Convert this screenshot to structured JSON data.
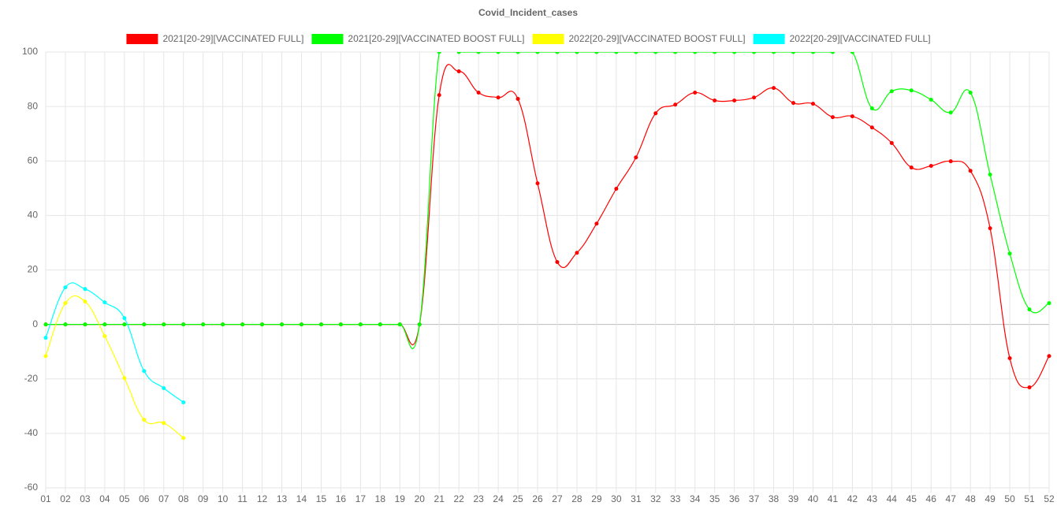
{
  "chart_data": {
    "type": "line",
    "title": "Covid_Incident_cases",
    "categories": [
      "01",
      "02",
      "03",
      "04",
      "05",
      "06",
      "07",
      "08",
      "09",
      "10",
      "11",
      "12",
      "13",
      "14",
      "15",
      "16",
      "17",
      "18",
      "19",
      "20",
      "21",
      "22",
      "23",
      "24",
      "25",
      "26",
      "27",
      "28",
      "29",
      "30",
      "31",
      "32",
      "33",
      "34",
      "35",
      "36",
      "37",
      "38",
      "39",
      "40",
      "41",
      "42",
      "43",
      "44",
      "45",
      "46",
      "47",
      "48",
      "49",
      "50",
      "51",
      "52"
    ],
    "series": [
      {
        "name": "2021[20-29][VACCINATED FULL]",
        "color": "#ff0000",
        "values": [
          0,
          0,
          0,
          0,
          0,
          0,
          0,
          0,
          0,
          0,
          0,
          0,
          0,
          0,
          0,
          0,
          0,
          0,
          0,
          0,
          84.2,
          92.9,
          85.1,
          83.3,
          82.8,
          51.8,
          22.9,
          26.3,
          37.0,
          49.8,
          61.3,
          77.5,
          80.7,
          85.1,
          82.2,
          82.2,
          83.3,
          86.8,
          81.3,
          81.0,
          76.1,
          76.4,
          72.3,
          66.6,
          57.6,
          58.2,
          59.9,
          56.4,
          35.3,
          -12.4,
          -23.1,
          -11.6
        ]
      },
      {
        "name": "2021[20-29][VACCINATED BOOST FULL]",
        "color": "#00ff00",
        "values": [
          0,
          0,
          0,
          0,
          0,
          0,
          0,
          0,
          0,
          0,
          0,
          0,
          0,
          0,
          0,
          0,
          0,
          0,
          0,
          0,
          100,
          100,
          100,
          100,
          100,
          100,
          100,
          100,
          100,
          100,
          100,
          100,
          100,
          100,
          100,
          100,
          100,
          100,
          100,
          100,
          100,
          100,
          79.3,
          85.6,
          85.9,
          82.5,
          77.8,
          85.1,
          55.0,
          26.0,
          5.5,
          7.8
        ]
      },
      {
        "name": "2022[20-29][VACCINATED BOOST FULL]",
        "color": "#ffff00",
        "values": [
          -11.6,
          7.8,
          8.4,
          -4.3,
          -19.7,
          -35.0,
          -36.2,
          -41.7,
          null,
          null,
          null,
          null,
          null,
          null,
          null,
          null,
          null,
          null,
          null,
          null,
          null,
          null,
          null,
          null,
          null,
          null,
          null,
          null,
          null,
          null,
          null,
          null,
          null,
          null,
          null,
          null,
          null,
          null,
          null,
          null,
          null,
          null,
          null,
          null,
          null,
          null,
          null,
          null,
          null,
          null,
          null,
          null
        ]
      },
      {
        "name": "2022[20-29][VACCINATED FULL]",
        "color": "#00ffff",
        "values": [
          -4.9,
          13.6,
          13.0,
          8.1,
          2.3,
          -17.1,
          -23.4,
          -28.6,
          null,
          null,
          null,
          null,
          null,
          null,
          null,
          null,
          null,
          null,
          null,
          null,
          null,
          null,
          null,
          null,
          null,
          null,
          null,
          null,
          null,
          null,
          null,
          null,
          null,
          null,
          null,
          null,
          null,
          null,
          null,
          null,
          null,
          null,
          null,
          null,
          null,
          null,
          null,
          null,
          null,
          null,
          null,
          null
        ]
      }
    ],
    "ylim": [
      -60,
      100
    ],
    "yticks": [
      -60,
      -40,
      -20,
      0,
      20,
      40,
      60,
      80,
      100
    ],
    "grid": true,
    "legend": "top"
  }
}
